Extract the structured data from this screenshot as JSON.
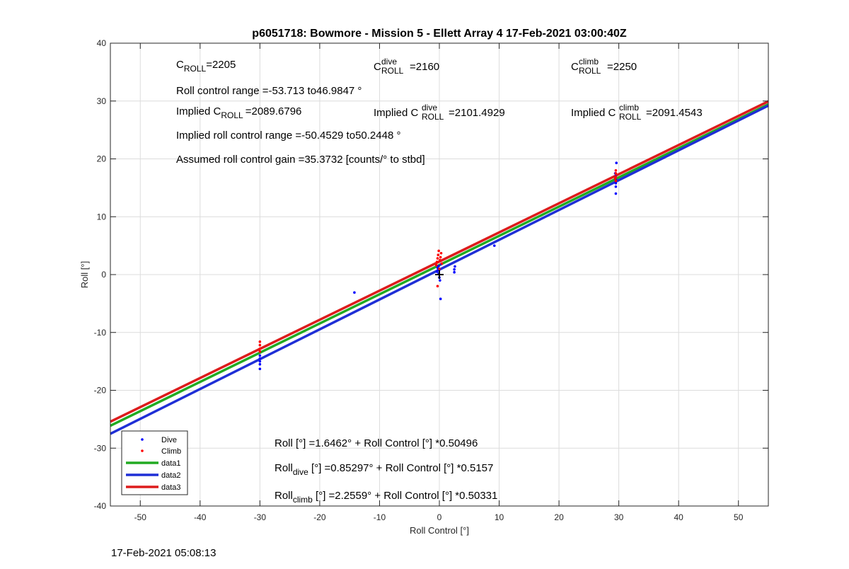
{
  "chart_data": {
    "type": "scatter",
    "title": "p6051718: Bowmore - Mission 5 - Ellett Array 4 17-Feb-2021 03:00:40Z",
    "xlabel": "Roll Control [°]",
    "ylabel": "Roll [°]",
    "xlim": [
      -55,
      55
    ],
    "ylim": [
      -40,
      40
    ],
    "xticks": [
      -50,
      -40,
      -30,
      -20,
      -10,
      0,
      10,
      20,
      30,
      40,
      50
    ],
    "yticks": [
      -40,
      -30,
      -20,
      -10,
      0,
      10,
      20,
      30,
      40
    ],
    "grid": true,
    "legend_position": "bottom-left",
    "colors": {
      "dive": "#0000ff",
      "climb": "#ff0000",
      "data1": "#22aa22",
      "data2": "#1f2fd6",
      "data3": "#dd1c1c",
      "crosshair": "#000000"
    },
    "series": [
      {
        "name": "Dive",
        "kind": "points",
        "color": "#0000ff",
        "x": [
          -30,
          -30,
          -30,
          -30,
          -30,
          -14.2,
          -0.4,
          -0.3,
          -0.2,
          -0.1,
          0,
          0.1,
          0.2,
          -0.1,
          0.3,
          2.5,
          2.5,
          2.6,
          9.2,
          29.5,
          29.5,
          29.5,
          29.5,
          29.5,
          29.6,
          29.4
        ],
        "y": [
          -14,
          -14.5,
          -15,
          -15.5,
          -16.3,
          -3.1,
          0.5,
          1.2,
          0.8,
          0.2,
          -0.5,
          -1,
          -4.2,
          1.5,
          1.8,
          0.4,
          0.9,
          1.4,
          5,
          14,
          15.2,
          15.8,
          16.4,
          17,
          19.3,
          17.5
        ]
      },
      {
        "name": "Climb",
        "kind": "points",
        "color": "#ff0000",
        "x": [
          -30,
          -30,
          -30,
          -30,
          -0.5,
          -0.4,
          -0.3,
          -0.2,
          -0.1,
          0,
          0.1,
          0.2,
          0.3,
          -0.3,
          0.4,
          29.5,
          29.5,
          29.5,
          29.5,
          29.4
        ],
        "y": [
          -11.6,
          -12.2,
          -12.8,
          -13.3,
          1.6,
          2.2,
          2.8,
          3.4,
          4.1,
          1,
          2.5,
          3,
          3.7,
          -2,
          1.9,
          16.2,
          16.9,
          17.5,
          18,
          16.6
        ]
      },
      {
        "name": "data1",
        "kind": "line",
        "color": "#22aa22",
        "intercept": 1.6462,
        "slope": 0.50496
      },
      {
        "name": "data2",
        "kind": "line",
        "color": "#1f2fd6",
        "intercept": 0.85297,
        "slope": 0.5157
      },
      {
        "name": "data3",
        "kind": "line",
        "color": "#dd1c1c",
        "intercept": 2.2559,
        "slope": 0.50331
      }
    ],
    "annotations": {
      "c_roll": {
        "base": "C",
        "sub": "ROLL",
        "value": "=2205"
      },
      "c_dive": {
        "base": "C",
        "sup": "dive",
        "sub": "ROLL",
        "value": "=2160"
      },
      "c_climb": {
        "base": "C",
        "sup": "climb",
        "sub": "ROLL",
        "value": "=2250"
      },
      "roll_range": "Roll control range =-53.713 to46.9847 °",
      "implied_c_roll": {
        "prefix": "Implied C",
        "sub": "ROLL",
        "value": "=2089.6796"
      },
      "implied_c_dive": {
        "prefix": "Implied C",
        "sup": "dive",
        "sub": "ROLL",
        "value": "=2101.4929"
      },
      "implied_c_climb": {
        "prefix": "Implied C",
        "sup": "climb",
        "sub": "ROLL",
        "value": "=2091.4543"
      },
      "implied_range": "Implied roll control range =-50.4529 to50.2448 °",
      "gain": "Assumed roll control gain =35.3732 [counts/° to stbd]",
      "fit_all": "Roll [°] =1.6462° + Roll Control [°] *0.50496",
      "fit_dive": {
        "base": "Roll",
        "sub": "dive",
        "rest": " [°] =0.85297° + Roll Control [°] *0.5157"
      },
      "fit_climb": {
        "base": "Roll",
        "sub": "climb",
        "rest": " [°] =2.2559° + Roll Control [°] *0.50331"
      }
    }
  },
  "footer_timestamp": "17-Feb-2021 05:08:13"
}
